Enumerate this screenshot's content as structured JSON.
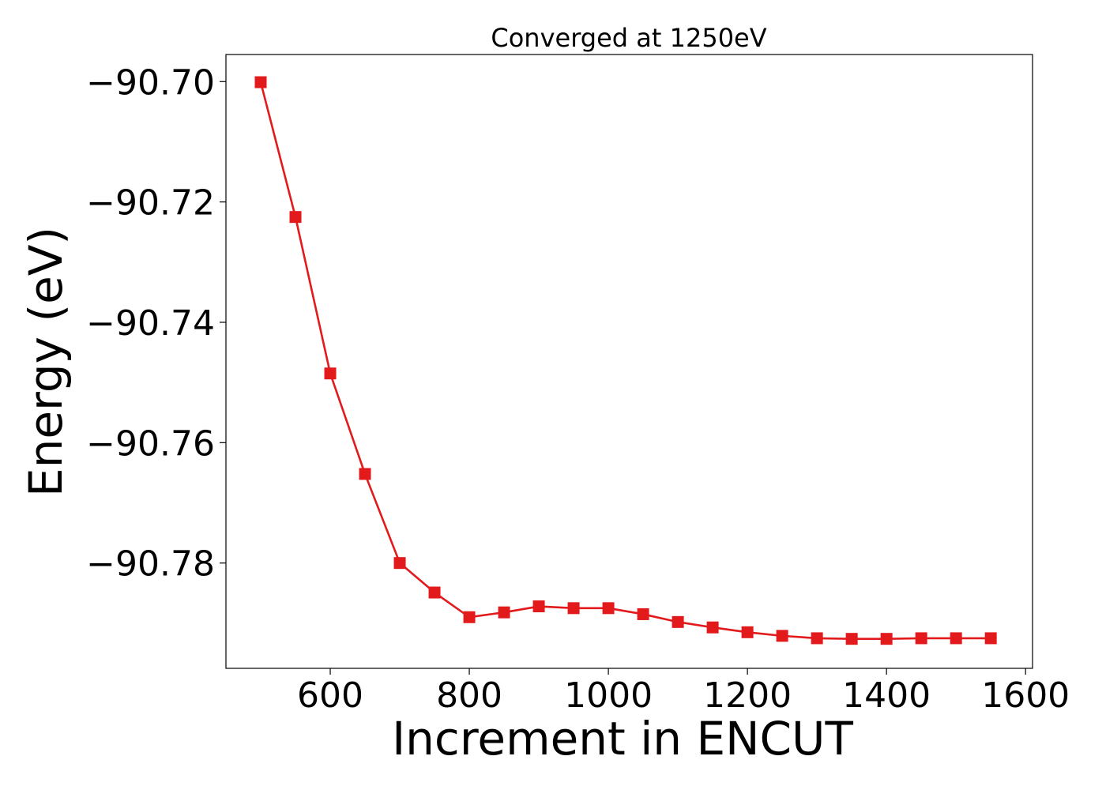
{
  "chart_data": {
    "type": "line",
    "title": "Converged at 1250eV",
    "xlabel": "Increment in ENCUT",
    "ylabel": "Energy (eV)",
    "xlim": [
      450,
      1610
    ],
    "ylim": [
      -90.7975,
      -90.6955
    ],
    "x_ticks": [
      600,
      800,
      1000,
      1200,
      1400,
      1600
    ],
    "x_tick_labels": [
      "600",
      "800",
      "1000",
      "1200",
      "1400",
      "1600"
    ],
    "y_ticks": [
      -90.7,
      -90.72,
      -90.74,
      -90.76,
      -90.78
    ],
    "y_tick_labels": [
      "−90.70",
      "−90.72",
      "−90.74",
      "−90.76",
      "−90.78"
    ],
    "grid": false,
    "series": [
      {
        "color": "#e31a1c",
        "marker": "square",
        "x": [
          500,
          550,
          600,
          650,
          700,
          750,
          800,
          850,
          900,
          950,
          1000,
          1050,
          1100,
          1150,
          1200,
          1250,
          1300,
          1350,
          1400,
          1450,
          1500,
          1550
        ],
        "values": [
          -90.7001,
          -90.7225,
          -90.7485,
          -90.7652,
          -90.78,
          -90.7849,
          -90.789,
          -90.7882,
          -90.7872,
          -90.7875,
          -90.7875,
          -90.7885,
          -90.7898,
          -90.7907,
          -90.7915,
          -90.7921,
          -90.7925,
          -90.7926,
          -90.7926,
          -90.7925,
          -90.7925,
          -90.7925
        ]
      }
    ]
  }
}
